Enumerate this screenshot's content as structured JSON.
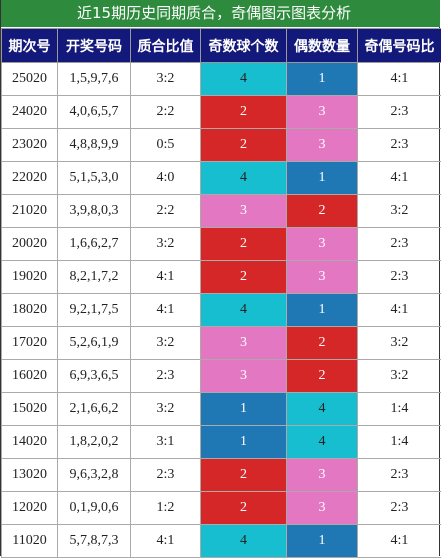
{
  "title": "近15期历史同期质合，奇偶图示图表分析",
  "headers": [
    "期次号",
    "开奖号码",
    "质合比值",
    "奇数球个数",
    "偶数数量",
    "奇偶号码比"
  ],
  "colors": {
    "title_bg": "#2e8b3e",
    "header_bg": "#13197a",
    "cyan": "#17becf",
    "blue": "#1f77b4",
    "red": "#d62728",
    "pink": "#e377c2"
  },
  "rows": [
    {
      "issue": "25020",
      "numbers": "1,5,9,7,6",
      "prime_ratio": "3:2",
      "odd": "4",
      "even": "1",
      "odd_even_ratio": "4:1"
    },
    {
      "issue": "24020",
      "numbers": "4,0,6,5,7",
      "prime_ratio": "2:2",
      "odd": "2",
      "even": "3",
      "odd_even_ratio": "2:3"
    },
    {
      "issue": "23020",
      "numbers": "4,8,8,9,9",
      "prime_ratio": "0:5",
      "odd": "2",
      "even": "3",
      "odd_even_ratio": "2:3"
    },
    {
      "issue": "22020",
      "numbers": "5,1,5,3,0",
      "prime_ratio": "4:0",
      "odd": "4",
      "even": "1",
      "odd_even_ratio": "4:1"
    },
    {
      "issue": "21020",
      "numbers": "3,9,8,0,3",
      "prime_ratio": "2:2",
      "odd": "3",
      "even": "2",
      "odd_even_ratio": "3:2"
    },
    {
      "issue": "20020",
      "numbers": "1,6,6,2,7",
      "prime_ratio": "3:2",
      "odd": "2",
      "even": "3",
      "odd_even_ratio": "2:3"
    },
    {
      "issue": "19020",
      "numbers": "8,2,1,7,2",
      "prime_ratio": "4:1",
      "odd": "2",
      "even": "3",
      "odd_even_ratio": "2:3"
    },
    {
      "issue": "18020",
      "numbers": "9,2,1,7,5",
      "prime_ratio": "4:1",
      "odd": "4",
      "even": "1",
      "odd_even_ratio": "4:1"
    },
    {
      "issue": "17020",
      "numbers": "5,2,6,1,9",
      "prime_ratio": "3:2",
      "odd": "3",
      "even": "2",
      "odd_even_ratio": "3:2"
    },
    {
      "issue": "16020",
      "numbers": "6,9,3,6,5",
      "prime_ratio": "2:3",
      "odd": "3",
      "even": "2",
      "odd_even_ratio": "3:2"
    },
    {
      "issue": "15020",
      "numbers": "2,1,6,6,2",
      "prime_ratio": "3:2",
      "odd": "1",
      "even": "4",
      "odd_even_ratio": "1:4"
    },
    {
      "issue": "14020",
      "numbers": "1,8,2,0,2",
      "prime_ratio": "3:1",
      "odd": "1",
      "even": "4",
      "odd_even_ratio": "1:4"
    },
    {
      "issue": "13020",
      "numbers": "9,6,3,2,8",
      "prime_ratio": "2:3",
      "odd": "2",
      "even": "3",
      "odd_even_ratio": "2:3"
    },
    {
      "issue": "12020",
      "numbers": "0,1,9,0,6",
      "prime_ratio": "1:2",
      "odd": "2",
      "even": "3",
      "odd_even_ratio": "2:3"
    },
    {
      "issue": "11020",
      "numbers": "5,7,8,7,3",
      "prime_ratio": "4:1",
      "odd": "4",
      "even": "1",
      "odd_even_ratio": "4:1"
    }
  ]
}
